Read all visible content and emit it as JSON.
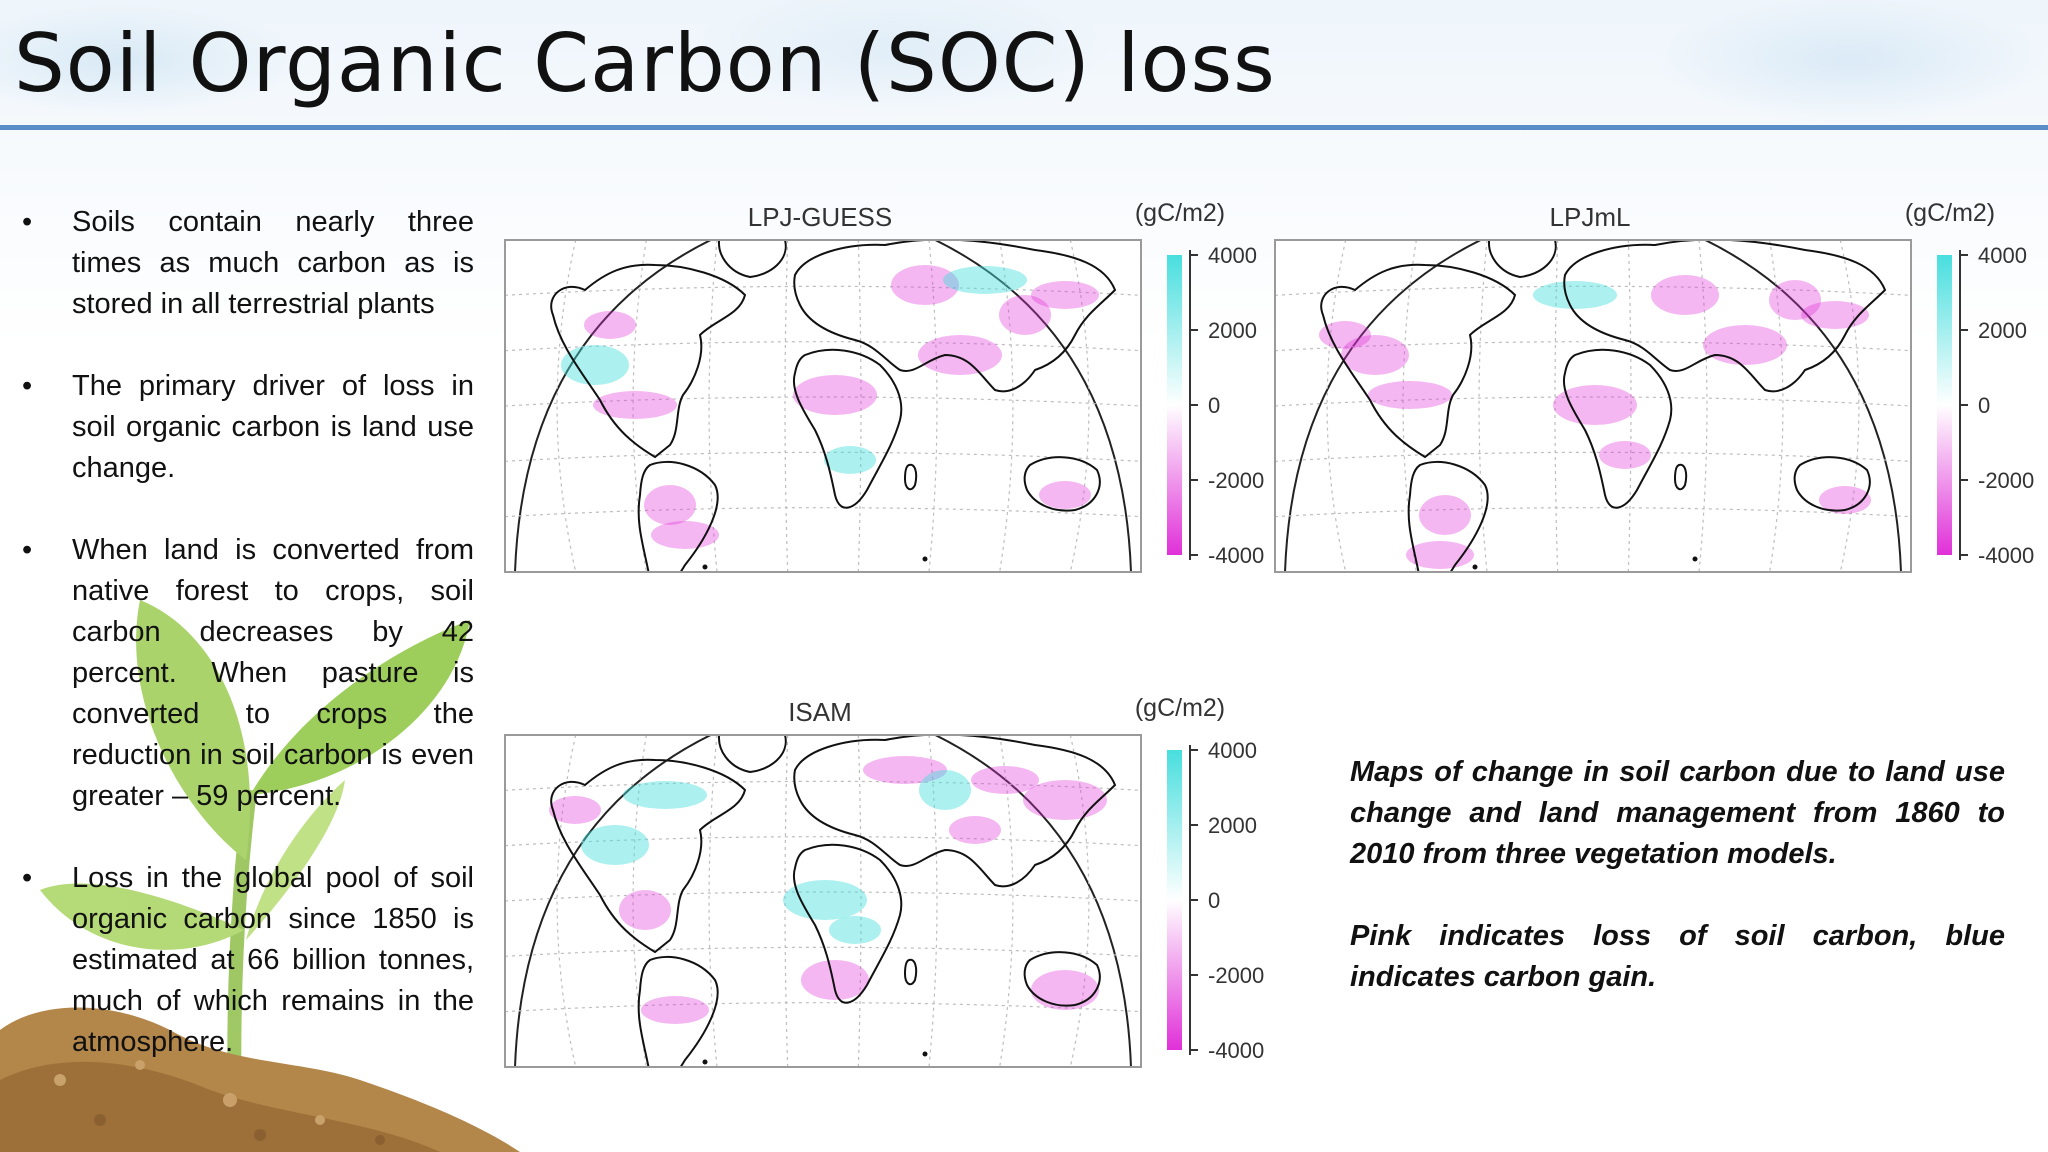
{
  "slide": {
    "title": "Soil Organic Carbon (SOC) loss",
    "accent_color": "#5b8ec6"
  },
  "bullets": [
    "Soils contain nearly three times as much carbon as is stored in all terrestrial plants",
    "The primary driver of loss in soil organic carbon is land use change.",
    "When land is converted from native forest to crops, soil carbon decreases by 42 percent. When pasture is converted to crops the reduction in soil carbon is even greater – 59 percent.",
    "Loss in the global pool of soil organic carbon since 1850 is estimated at 66 billion tonnes, much of which remains in the atmosphere."
  ],
  "maps": [
    {
      "model": "LPJ-GUESS",
      "unit": "(gC/m2)",
      "ticks": [
        "4000",
        "2000",
        "0",
        "-2000",
        "-4000"
      ]
    },
    {
      "model": "LPJmL",
      "unit": "(gC/m2)",
      "ticks": [
        "4000",
        "2000",
        "0",
        "-2000",
        "-4000"
      ]
    },
    {
      "model": "ISAM",
      "unit": "(gC/m2)",
      "ticks": [
        "4000",
        "2000",
        "0",
        "-2000",
        "-4000"
      ]
    }
  ],
  "colorbar": {
    "high_color": "#48dede",
    "mid_color": "#ffffff",
    "low_color": "#e030d8"
  },
  "caption": {
    "line1": "Maps of change in soil carbon due to land use change and land management from 1860 to 2010 from three vegetation models.",
    "line2": "Pink indicates loss of soil carbon, blue indicates carbon gain."
  },
  "icons": [
    "seedling-illustration",
    "soil-mound-illustration"
  ]
}
